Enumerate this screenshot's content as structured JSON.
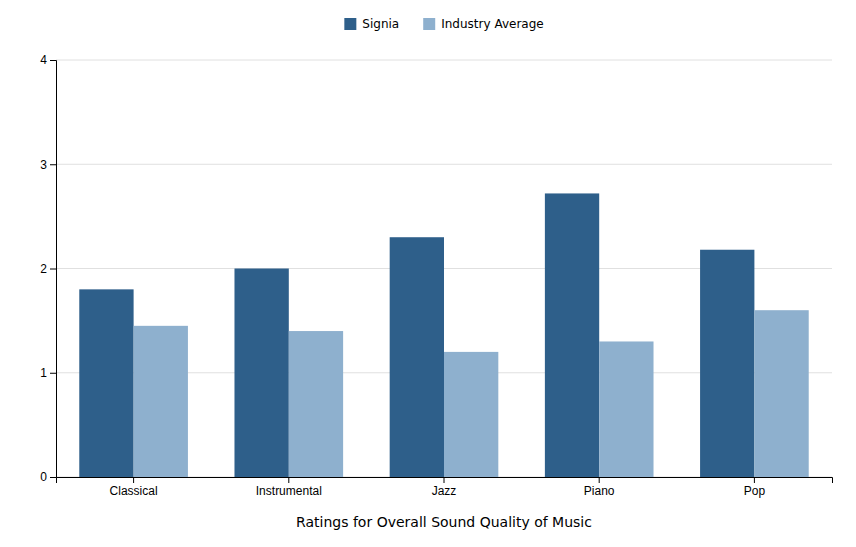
{
  "chart_data": {
    "type": "bar",
    "xlabel": "Ratings for Overall Sound Quality of Music",
    "categories": [
      "Classical",
      "Instrumental",
      "Jazz",
      "Piano",
      "Pop"
    ],
    "series": [
      {
        "name": "Signia",
        "color": "#2E5F8A",
        "values": [
          1.8,
          2.0,
          2.3,
          2.72,
          2.18
        ]
      },
      {
        "name": "Industry Average",
        "color": "#8EB0CE",
        "values": [
          1.45,
          1.4,
          1.2,
          1.3,
          1.6
        ]
      }
    ],
    "ylim": [
      0,
      4
    ],
    "yticks": [
      0,
      1,
      2,
      3,
      4
    ],
    "grid": true,
    "legend": "top"
  }
}
